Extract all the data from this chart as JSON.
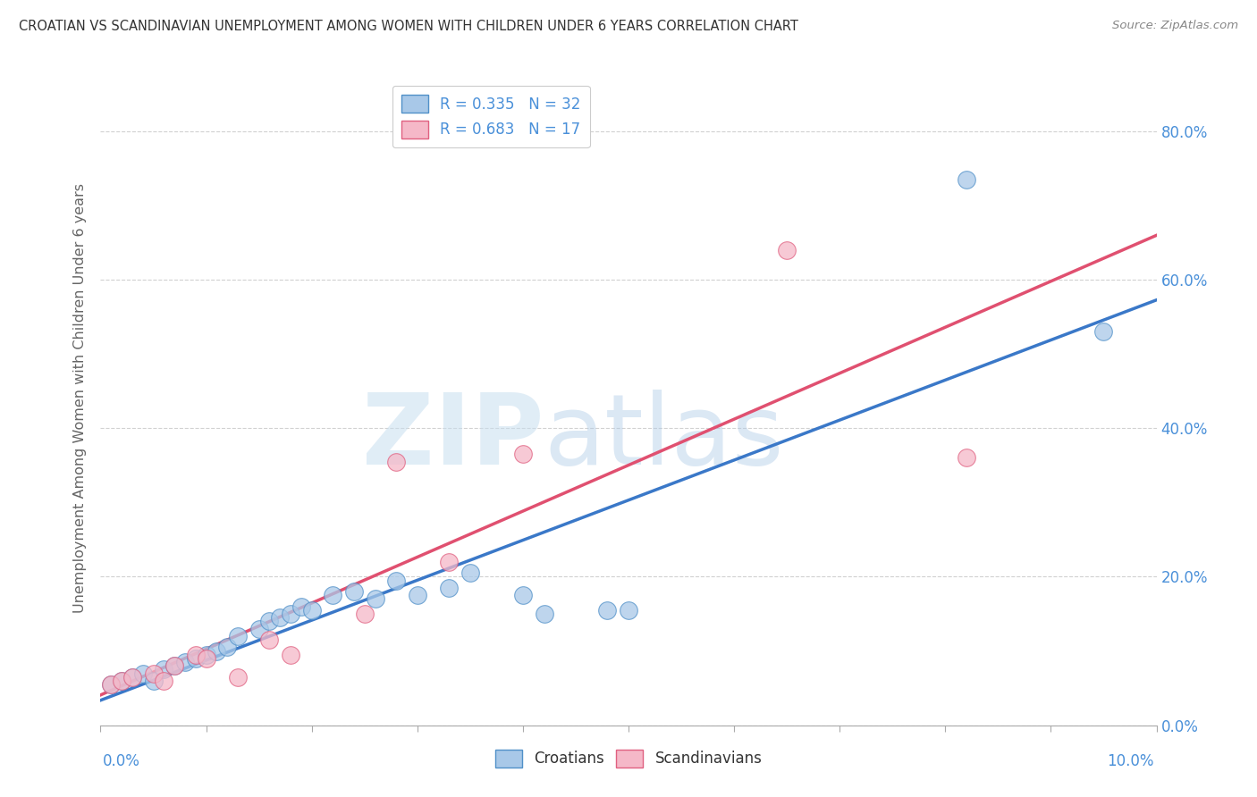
{
  "title": "CROATIAN VS SCANDINAVIAN UNEMPLOYMENT AMONG WOMEN WITH CHILDREN UNDER 6 YEARS CORRELATION CHART",
  "source": "Source: ZipAtlas.com",
  "ylabel": "Unemployment Among Women with Children Under 6 years",
  "watermark_zip": "ZIP",
  "watermark_atlas": "atlas",
  "legend_blue": "R = 0.335   N = 32",
  "legend_pink": "R = 0.683   N = 17",
  "croatians_x": [
    0.001,
    0.002,
    0.003,
    0.004,
    0.005,
    0.006,
    0.007,
    0.008,
    0.009,
    0.01,
    0.011,
    0.012,
    0.013,
    0.015,
    0.016,
    0.017,
    0.018,
    0.019,
    0.02,
    0.022,
    0.024,
    0.026,
    0.028,
    0.03,
    0.033,
    0.035,
    0.04,
    0.042,
    0.048,
    0.05,
    0.082,
    0.095
  ],
  "croatians_y": [
    0.055,
    0.06,
    0.065,
    0.07,
    0.06,
    0.075,
    0.08,
    0.085,
    0.09,
    0.095,
    0.1,
    0.105,
    0.12,
    0.13,
    0.14,
    0.145,
    0.15,
    0.16,
    0.155,
    0.175,
    0.18,
    0.17,
    0.195,
    0.175,
    0.185,
    0.205,
    0.175,
    0.15,
    0.155,
    0.155,
    0.735,
    0.53
  ],
  "scandinavians_x": [
    0.001,
    0.002,
    0.003,
    0.005,
    0.006,
    0.007,
    0.009,
    0.01,
    0.013,
    0.016,
    0.018,
    0.025,
    0.028,
    0.033,
    0.04,
    0.065,
    0.082
  ],
  "scandinavians_y": [
    0.055,
    0.06,
    0.065,
    0.07,
    0.06,
    0.08,
    0.095,
    0.09,
    0.065,
    0.115,
    0.095,
    0.15,
    0.355,
    0.22,
    0.365,
    0.64,
    0.36
  ],
  "blue_color": "#a8c8e8",
  "pink_color": "#f5b8c8",
  "blue_edge_color": "#5090c8",
  "pink_edge_color": "#e06080",
  "blue_line_color": "#3a78c8",
  "pink_line_color": "#e05070",
  "background_color": "#ffffff",
  "grid_color": "#cccccc",
  "title_color": "#333333",
  "axis_label_color": "#4a90d9",
  "ylabel_color": "#666666",
  "xlim": [
    0.0,
    0.1
  ],
  "ylim": [
    0.0,
    0.88
  ],
  "yticks": [
    0.0,
    0.2,
    0.4,
    0.6,
    0.8
  ],
  "ytick_labels": [
    "0.0%",
    "20.0%",
    "40.0%",
    "60.0%",
    "80.0%"
  ]
}
